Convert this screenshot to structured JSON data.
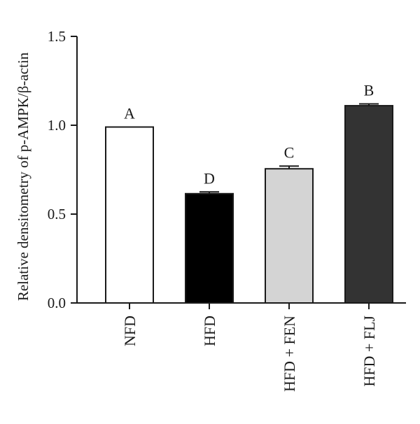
{
  "chart_data": {
    "type": "bar",
    "categories": [
      "NFD",
      "HFD",
      "HFD + FEN",
      "HFD + FLJ"
    ],
    "values": [
      0.99,
      0.615,
      0.755,
      1.11
    ],
    "errors": [
      0.0,
      0.01,
      0.015,
      0.01
    ],
    "significance_labels": [
      "A",
      "D",
      "C",
      "B"
    ],
    "bar_colors": [
      "#ffffff",
      "#000000",
      "#d4d4d4",
      "#333333"
    ],
    "title": "",
    "xlabel": "",
    "ylabel": "Relative densitometry of p-AMPK/β-actin",
    "ylim": [
      0,
      1.5
    ],
    "yticks": [
      "0.0",
      "0.5",
      "1.0",
      "1.5"
    ],
    "grid": false,
    "legend": "none"
  }
}
